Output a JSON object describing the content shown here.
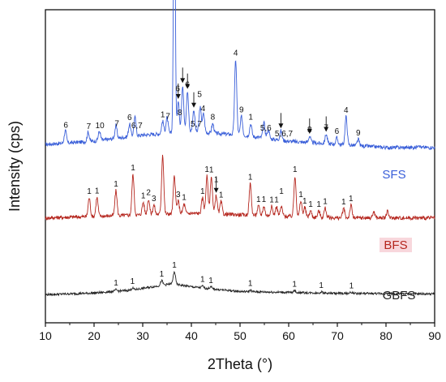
{
  "chart_data": {
    "type": "line",
    "title": "",
    "xlabel": "2Theta (°)",
    "ylabel": "Intensity (cps)",
    "xlim": [
      10,
      90
    ],
    "x_ticks": [
      10,
      20,
      30,
      40,
      50,
      60,
      70,
      80,
      90
    ],
    "y_ticks": [],
    "grid": false,
    "colors": {
      "SFS": "#3a5fd9",
      "BFS": "#b5261e",
      "GBFS": "#222222",
      "arrow": "#111111"
    },
    "series": [
      {
        "name": "SFS",
        "baseline": [
          [
            10,
            0.57
          ],
          [
            20,
            0.58
          ],
          [
            30,
            0.6
          ],
          [
            40,
            0.61
          ],
          [
            50,
            0.6
          ],
          [
            60,
            0.58
          ],
          [
            70,
            0.57
          ],
          [
            80,
            0.56
          ],
          [
            90,
            0.56
          ]
        ],
        "peaks": [
          [
            14.1,
            0.04
          ],
          [
            18.8,
            0.03
          ],
          [
            21.1,
            0.03
          ],
          [
            24.5,
            0.04
          ],
          [
            27.3,
            0.04
          ],
          [
            28.4,
            0.06
          ],
          [
            34.1,
            0.04
          ],
          [
            35.0,
            0.05
          ],
          [
            36.5,
            0.9
          ],
          [
            37.3,
            0.1
          ],
          [
            38.2,
            0.15
          ],
          [
            39.2,
            0.13
          ],
          [
            40.5,
            0.07
          ],
          [
            41.8,
            0.08
          ],
          [
            42.5,
            0.06
          ],
          [
            44.4,
            0.03
          ],
          [
            49.1,
            0.24
          ],
          [
            50.3,
            0.06
          ],
          [
            52.2,
            0.04
          ],
          [
            54.9,
            0.05
          ],
          [
            55.8,
            0.03
          ],
          [
            58.4,
            0.03
          ],
          [
            64.3,
            0.02
          ],
          [
            67.7,
            0.03
          ],
          [
            69.9,
            0.02
          ],
          [
            71.8,
            0.09
          ],
          [
            74.3,
            0.02
          ],
          [
            86.7,
            0.01
          ]
        ]
      },
      {
        "name": "BFS",
        "baseline": [
          [
            10,
            0.335
          ],
          [
            20,
            0.34
          ],
          [
            30,
            0.345
          ],
          [
            40,
            0.35
          ],
          [
            50,
            0.345
          ],
          [
            60,
            0.34
          ],
          [
            70,
            0.335
          ],
          [
            80,
            0.335
          ],
          [
            90,
            0.335
          ]
        ],
        "peaks": [
          [
            19.0,
            0.06
          ],
          [
            20.6,
            0.06
          ],
          [
            24.5,
            0.08
          ],
          [
            28.0,
            0.13
          ],
          [
            30.1,
            0.04
          ],
          [
            31.2,
            0.05
          ],
          [
            32.3,
            0.03
          ],
          [
            34.1,
            0.19
          ],
          [
            36.5,
            0.12
          ],
          [
            37.3,
            0.04
          ],
          [
            38.5,
            0.03
          ],
          [
            42.3,
            0.05
          ],
          [
            43.2,
            0.12
          ],
          [
            44.1,
            0.12
          ],
          [
            45.1,
            0.06
          ],
          [
            46.1,
            0.04
          ],
          [
            52.1,
            0.1
          ],
          [
            53.8,
            0.03
          ],
          [
            54.9,
            0.03
          ],
          [
            56.5,
            0.03
          ],
          [
            57.5,
            0.03
          ],
          [
            58.5,
            0.03
          ],
          [
            61.3,
            0.13
          ],
          [
            62.5,
            0.05
          ],
          [
            63.3,
            0.03
          ],
          [
            64.5,
            0.02
          ],
          [
            66.2,
            0.02
          ],
          [
            67.5,
            0.03
          ],
          [
            71.3,
            0.03
          ],
          [
            72.8,
            0.04
          ],
          [
            77.5,
            0.02
          ],
          [
            80.3,
            0.02
          ]
        ]
      },
      {
        "name": "GBFS",
        "baseline": [
          [
            10,
            0.09
          ],
          [
            20,
            0.095
          ],
          [
            28,
            0.105
          ],
          [
            32,
            0.115
          ],
          [
            36,
            0.125
          ],
          [
            40,
            0.115
          ],
          [
            45,
            0.107
          ],
          [
            50,
            0.1
          ],
          [
            60,
            0.097
          ],
          [
            70,
            0.094
          ],
          [
            80,
            0.093
          ],
          [
            90,
            0.092
          ]
        ],
        "peaks": [
          [
            24.5,
            0.005
          ],
          [
            27.9,
            0.006
          ],
          [
            33.9,
            0.015
          ],
          [
            36.5,
            0.04
          ],
          [
            42.3,
            0.006
          ],
          [
            44.0,
            0.006
          ],
          [
            52.1,
            0.005
          ],
          [
            61.2,
            0.006
          ],
          [
            66.7,
            0.004
          ],
          [
            72.9,
            0.004
          ]
        ]
      }
    ],
    "annotations": [
      {
        "t": "6",
        "x": 14.2,
        "s": "SFS"
      },
      {
        "t": "7",
        "x": 18.9,
        "s": "SFS"
      },
      {
        "t": "10",
        "x": 21.2,
        "s": "SFS"
      },
      {
        "t": "7",
        "x": 24.7,
        "s": "SFS"
      },
      {
        "t": "6",
        "x": 27.3,
        "s": "SFS"
      },
      {
        "t": "6,7",
        "x": 28.8,
        "s": "SFS"
      },
      {
        "t": "1",
        "x": 34.1,
        "s": "SFS"
      },
      {
        "t": "7",
        "x": 35.2,
        "s": "SFS"
      },
      {
        "t": "1",
        "x": 36.5,
        "s": "SFS"
      },
      {
        "t": "8",
        "x": 37.6,
        "s": "SFS"
      },
      {
        "t": "6",
        "x": 37.2,
        "s": "SFS"
      },
      {
        "t": "6",
        "x": 39.2,
        "s": "SFS"
      },
      {
        "t": "5,7",
        "x": 41.0,
        "s": "SFS"
      },
      {
        "t": "4",
        "x": 42.4,
        "s": "SFS"
      },
      {
        "t": "5",
        "x": 41.7,
        "s": "SFS"
      },
      {
        "t": "8",
        "x": 44.4,
        "s": "SFS"
      },
      {
        "t": "4",
        "x": 49.1,
        "s": "SFS"
      },
      {
        "t": "9",
        "x": 50.3,
        "s": "SFS"
      },
      {
        "t": "1",
        "x": 52.2,
        "s": "SFS"
      },
      {
        "t": "5,6",
        "x": 55.3,
        "s": "SFS"
      },
      {
        "t": "5,6,7",
        "x": 59.0,
        "s": "SFS"
      },
      {
        "t": "8",
        "x": 64.3,
        "s": "SFS"
      },
      {
        "t": "7",
        "x": 67.7,
        "s": "SFS"
      },
      {
        "t": "6",
        "x": 69.9,
        "s": "SFS"
      },
      {
        "t": "4",
        "x": 71.8,
        "s": "SFS"
      },
      {
        "t": "9",
        "x": 74.3,
        "s": "SFS"
      },
      {
        "t": "1",
        "x": 19.0,
        "s": "BFS"
      },
      {
        "t": "1",
        "x": 20.6,
        "s": "BFS"
      },
      {
        "t": "1",
        "x": 24.5,
        "s": "BFS"
      },
      {
        "t": "1",
        "x": 28.0,
        "s": "BFS"
      },
      {
        "t": "1",
        "x": 30.1,
        "s": "BFS"
      },
      {
        "t": "2",
        "x": 31.2,
        "s": "BFS"
      },
      {
        "t": "3",
        "x": 32.3,
        "s": "BFS"
      },
      {
        "t": "3",
        "x": 37.3,
        "s": "BFS"
      },
      {
        "t": "1",
        "x": 38.5,
        "s": "BFS"
      },
      {
        "t": "1",
        "x": 42.3,
        "s": "BFS"
      },
      {
        "t": "1",
        "x": 43.2,
        "s": "BFS"
      },
      {
        "t": "1",
        "x": 44.1,
        "s": "BFS"
      },
      {
        "t": "1",
        "x": 45.1,
        "s": "BFS"
      },
      {
        "t": "1",
        "x": 46.1,
        "s": "BFS"
      },
      {
        "t": "1",
        "x": 52.1,
        "s": "BFS"
      },
      {
        "t": "1",
        "x": 53.8,
        "s": "BFS"
      },
      {
        "t": "1",
        "x": 54.9,
        "s": "BFS"
      },
      {
        "t": "1",
        "x": 56.5,
        "s": "BFS"
      },
      {
        "t": "1",
        "x": 57.5,
        "s": "BFS"
      },
      {
        "t": "1",
        "x": 58.5,
        "s": "BFS"
      },
      {
        "t": "1",
        "x": 61.3,
        "s": "BFS"
      },
      {
        "t": "1",
        "x": 62.5,
        "s": "BFS"
      },
      {
        "t": "1",
        "x": 63.3,
        "s": "BFS"
      },
      {
        "t": "1",
        "x": 64.5,
        "s": "BFS"
      },
      {
        "t": "1",
        "x": 66.2,
        "s": "BFS"
      },
      {
        "t": "1",
        "x": 67.5,
        "s": "BFS"
      },
      {
        "t": "1",
        "x": 71.3,
        "s": "BFS"
      },
      {
        "t": "1",
        "x": 72.8,
        "s": "BFS"
      },
      {
        "t": "1",
        "x": 24.5,
        "s": "GBFS"
      },
      {
        "t": "1",
        "x": 27.9,
        "s": "GBFS"
      },
      {
        "t": "1",
        "x": 33.9,
        "s": "GBFS"
      },
      {
        "t": "1",
        "x": 36.5,
        "s": "GBFS"
      },
      {
        "t": "1",
        "x": 42.3,
        "s": "GBFS"
      },
      {
        "t": "1",
        "x": 44.0,
        "s": "GBFS"
      },
      {
        "t": "1",
        "x": 52.1,
        "s": "GBFS"
      },
      {
        "t": "1",
        "x": 61.2,
        "s": "GBFS"
      },
      {
        "t": "1",
        "x": 66.7,
        "s": "GBFS"
      },
      {
        "t": "1",
        "x": 72.9,
        "s": "GBFS"
      }
    ],
    "arrows": [
      37.3,
      38.2,
      39.2,
      40.5,
      58.4,
      64.3,
      67.7,
      45.1
    ],
    "series_labels": [
      {
        "name": "SFS",
        "text": "SFS"
      },
      {
        "name": "BFS",
        "text": "BFS"
      },
      {
        "name": "GBFS",
        "text": "GBFS"
      }
    ]
  }
}
